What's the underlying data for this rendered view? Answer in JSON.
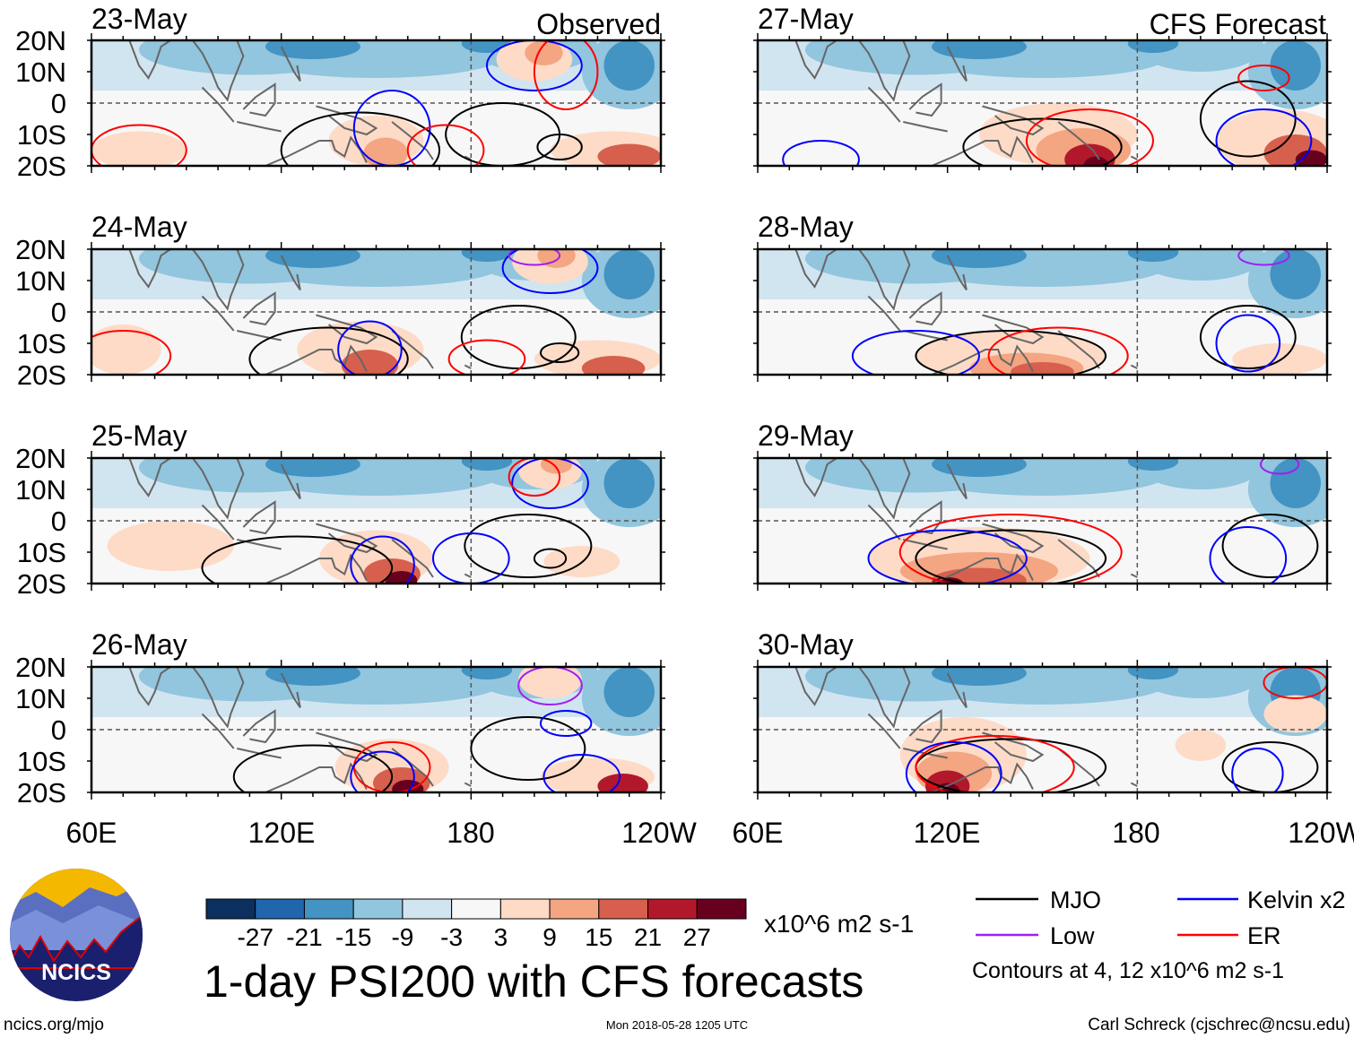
{
  "chart_data": {
    "type": "heatmap",
    "title": "1-day PSI200 with CFS forecasts",
    "variable": "PSI200 anomaly",
    "units": "x10^6 m2 s-1",
    "lat_ticks": [
      "20N",
      "10N",
      "0",
      "10S",
      "20S"
    ],
    "lon_ticks": [
      "60E",
      "120E",
      "180",
      "120W"
    ],
    "lat_range": [
      -20,
      20
    ],
    "lon_range": [
      60,
      240
    ],
    "panels": [
      {
        "date": "23-May",
        "label": "Observed",
        "column": "observed"
      },
      {
        "date": "24-May",
        "label": "",
        "column": "observed"
      },
      {
        "date": "25-May",
        "label": "",
        "column": "observed"
      },
      {
        "date": "26-May",
        "label": "",
        "column": "observed"
      },
      {
        "date": "27-May",
        "label": "CFS Forecast",
        "column": "forecast"
      },
      {
        "date": "28-May",
        "label": "",
        "column": "forecast"
      },
      {
        "date": "29-May",
        "label": "",
        "column": "forecast"
      },
      {
        "date": "30-May",
        "label": "",
        "column": "forecast"
      }
    ],
    "colorbar": {
      "levels": [
        "-27",
        "-21",
        "-15",
        "-9",
        "-3",
        "3",
        "9",
        "15",
        "21",
        "27"
      ],
      "colors": [
        "#0b2f5e",
        "#2166ac",
        "#4393c3",
        "#92c5de",
        "#d1e5f0",
        "#f7f7f7",
        "#fddbc7",
        "#f4a582",
        "#d6604d",
        "#b2182b",
        "#67001f"
      ],
      "units": "x10^6 m2 s-1"
    },
    "legend": [
      {
        "label": "MJO",
        "color": "#000000"
      },
      {
        "label": "Kelvin x2",
        "color": "#0000ff"
      },
      {
        "label": "Low",
        "color": "#a020f0"
      },
      {
        "label": "ER",
        "color": "#ff0000"
      }
    ],
    "contour_note": "Contours at 4, 12 x10^6 m2 s-1"
  },
  "logo": {
    "text": "NCICS"
  },
  "footer": {
    "url": "ncics.org/mjo",
    "timestamp": "Mon 2018-05-28 1205 UTC",
    "author": "Carl Schreck (cjschrec@ncsu.edu)"
  }
}
